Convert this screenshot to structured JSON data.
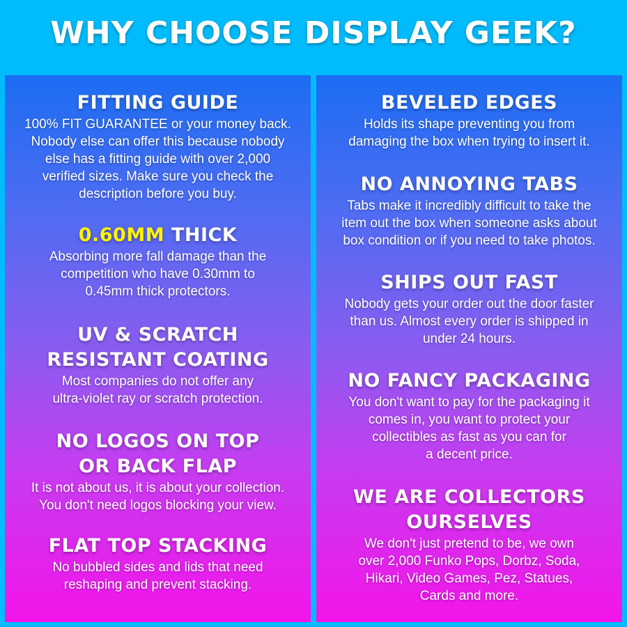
{
  "title": "WHY CHOOSE DISPLAY GEEK?",
  "colors": {
    "background": "#00bcfc",
    "gradient_top": "#1b6df2",
    "gradient_bottom": "#f414ea",
    "highlight": "#fff200"
  },
  "left": [
    {
      "heading": [
        "FITTING GUIDE"
      ],
      "body": [
        "100% FIT GUARANTEE or your money back.",
        "Nobody else can offer this because nobody",
        "else has a fitting guide with over 2,000",
        "verified sizes. Make sure you check the",
        "description before you buy."
      ]
    },
    {
      "heading_highlight": "0.60MM",
      "heading_rest": " THICK",
      "body": [
        "Absorbing more fall damage than the",
        "competition who have 0.30mm to",
        "0.45mm thick protectors."
      ]
    },
    {
      "heading": [
        "UV & SCRATCH",
        "RESISTANT COATING"
      ],
      "body": [
        "Most companies do not offer any",
        "ultra-violet ray or scratch protection."
      ]
    },
    {
      "heading": [
        "NO LOGOS ON TOP",
        "OR BACK FLAP"
      ],
      "body": [
        "It is not about us, it is about your collection.",
        "You don't need logos blocking your view."
      ]
    },
    {
      "heading": [
        "FLAT TOP STACKING"
      ],
      "body": [
        "No bubbled sides and lids that need",
        "reshaping and prevent stacking."
      ]
    }
  ],
  "right": [
    {
      "heading": [
        "BEVELED EDGES"
      ],
      "body": [
        "Holds its shape preventing you from",
        "damaging the box when trying to insert it."
      ]
    },
    {
      "heading": [
        "NO ANNOYING TABS"
      ],
      "body": [
        "Tabs make it incredibly difficult to take the",
        "item out the box when someone asks about",
        "box condition or if you need to take photos."
      ]
    },
    {
      "heading": [
        "SHIPS OUT FAST"
      ],
      "body": [
        "Nobody gets your order out the door faster",
        "than us. Almost every order is shipped in",
        "under 24 hours."
      ]
    },
    {
      "heading": [
        "NO FANCY PACKAGING"
      ],
      "body": [
        "You don't want to pay for the packaging it",
        "comes in, you want to protect your",
        "collectibles as fast as you can for",
        "a decent price."
      ]
    },
    {
      "heading": [
        "WE ARE COLLECTORS",
        "OURSELVES"
      ],
      "body": [
        "We don't just pretend to be, we own",
        "over 2,000 Funko Pops, Dorbz, Soda,",
        "Hikari, Video Games, Pez, Statues,",
        "Cards and more."
      ]
    }
  ]
}
